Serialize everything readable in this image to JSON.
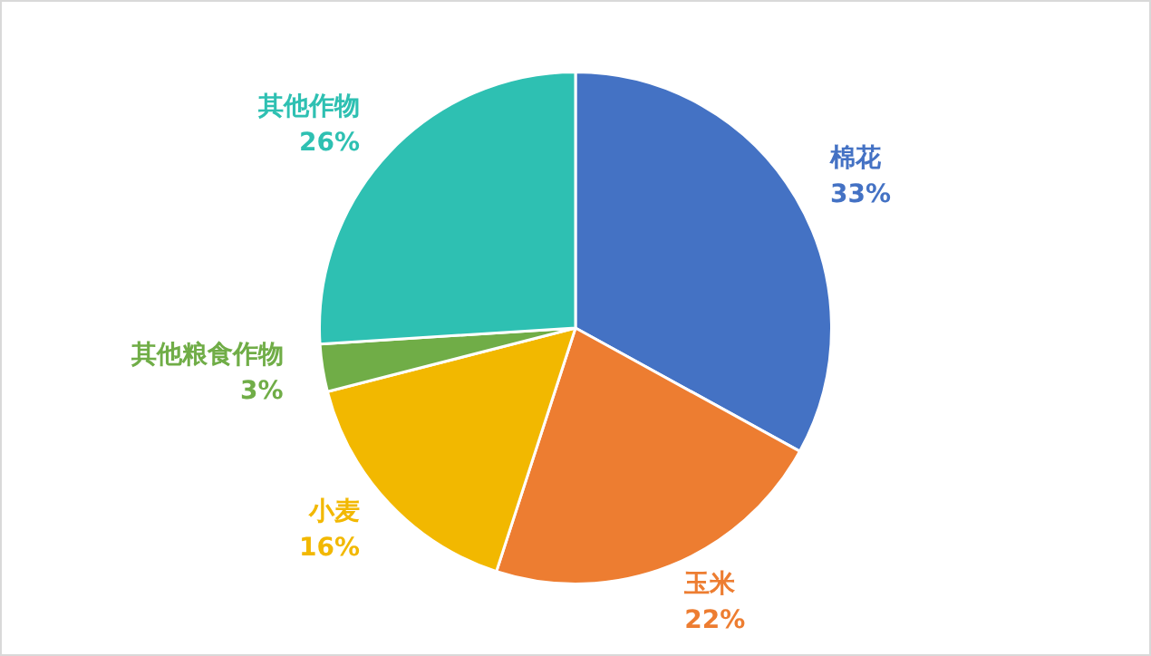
{
  "chart_data": {
    "type": "pie",
    "categories": [
      "棉花",
      "玉米",
      "小麦",
      "其他粮食作物",
      "其他作物"
    ],
    "values": [
      33,
      22,
      16,
      3,
      26
    ],
    "value_labels": [
      "33%",
      "22%",
      "16%",
      "3%",
      "26%"
    ],
    "colors": [
      "#4472c4",
      "#ed7d31",
      "#f2b800",
      "#70ad47",
      "#2ec0b2"
    ],
    "legend": false
  }
}
